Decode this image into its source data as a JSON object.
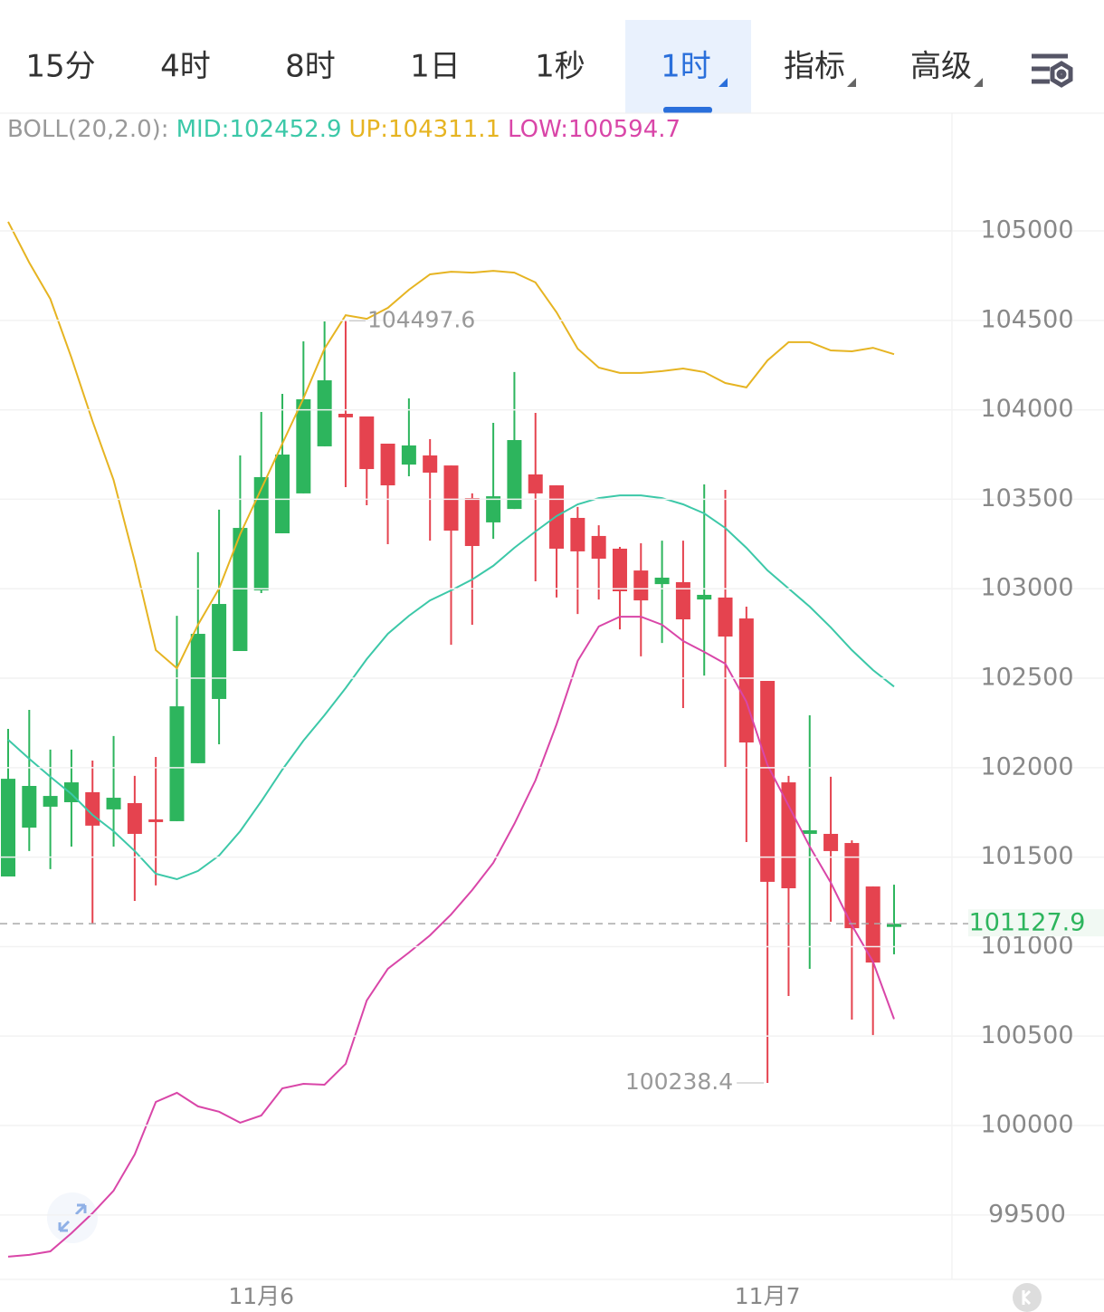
{
  "tabs": [
    "15分",
    "4时",
    "8时",
    "1日",
    "1秒",
    "1时",
    "指标",
    "高级"
  ],
  "active_tab": 5,
  "chart_data": {
    "type": "candlestick",
    "indicator": "BOLL(20,2.0):",
    "categories": [
      null,
      null,
      null,
      null,
      null,
      null,
      null,
      null,
      null,
      null,
      null,
      null,
      "11月6",
      null,
      null,
      null,
      null,
      null,
      null,
      null,
      null,
      null,
      null,
      null,
      null,
      null,
      null,
      null,
      null,
      null,
      null,
      null,
      null,
      null,
      null,
      null,
      "11月7",
      null,
      null,
      null,
      null,
      null,
      null
    ],
    "open": [
      101392,
      101665,
      101782,
      101807,
      101863,
      101767,
      101802,
      101711,
      101701,
      102025,
      102384,
      102652,
      102991,
      103310,
      103533,
      103796,
      103978,
      103963,
      103811,
      103694,
      103745,
      103689,
      103507,
      103371,
      103446,
      103639,
      103578,
      103396,
      103295,
      103224,
      103102,
      103026,
      103037,
      102940,
      102951,
      102834,
      102485,
      101918,
      101630,
      101630,
      101579,
      101336,
      101110
    ],
    "high": [
      102217,
      102323,
      102101,
      102101,
      102040,
      102177,
      101954,
      102060,
      102849,
      103204,
      103442,
      103745,
      103988,
      104089,
      104383,
      104494,
      104497.6,
      103963,
      103811,
      104064,
      103836,
      103689,
      103533,
      103927,
      104211,
      103983,
      103578,
      103457,
      103355,
      103234,
      103254,
      103269,
      103269,
      103583,
      103553,
      102900,
      102485,
      101954,
      102293,
      101949,
      101594,
      101336,
      101346
    ],
    "low": [
      101392,
      101534,
      101433,
      101559,
      101129,
      101559,
      101255,
      101342,
      101701,
      102025,
      102131,
      102652,
      102976,
      103310,
      103533,
      103796,
      103568,
      103467,
      103249,
      103629,
      103269,
      102687,
      102799,
      103279,
      103446,
      103042,
      102951,
      102859,
      102940,
      102773,
      102622,
      102697,
      102333,
      102515,
      102004,
      101584,
      100238.4,
      100724,
      100876,
      101139,
      100592,
      100506,
      100957
    ],
    "close": [
      101938,
      101898,
      101842,
      101918,
      101676,
      101832,
      101630,
      101696,
      102343,
      102748,
      102915,
      103340,
      103624,
      103750,
      104059,
      104165,
      103958,
      103669,
      103578,
      103801,
      103649,
      103325,
      103239,
      103517,
      103831,
      103533,
      103224,
      103209,
      103168,
      102986,
      102935,
      103062,
      102829,
      102966,
      102733,
      102141,
      101362,
      101326,
      101650,
      101534,
      101103,
      100911,
      101127.9
    ],
    "up_color": "#2db55d",
    "down_color": "#e5434f",
    "overlays": [
      {
        "label": "MID:102452.9",
        "color": "#3cc8a8",
        "values": [
          102156,
          102050,
          101949,
          101853,
          101736,
          101645,
          101534,
          101407,
          101377,
          101423,
          101509,
          101645,
          101812,
          101989,
          102151,
          102293,
          102445,
          102607,
          102748,
          102849,
          102935,
          102991,
          103052,
          103128,
          103229,
          103320,
          103406,
          103472,
          103507,
          103522,
          103522,
          103507,
          103472,
          103421,
          103340,
          103229,
          103103,
          103001,
          102900,
          102784,
          102657,
          102546,
          102452.9
        ]
      },
      {
        "label": "UP:104311.1",
        "color": "#e6b422",
        "values": [
          105051,
          104823,
          104620,
          104292,
          103937,
          103608,
          103153,
          102657,
          102556,
          102799,
          103001,
          103305,
          103558,
          103811,
          104064,
          104342,
          104529,
          104509,
          104570,
          104671,
          104757,
          104772,
          104767,
          104777,
          104767,
          104712,
          104545,
          104342,
          104236,
          104206,
          104206,
          104216,
          104231,
          104211,
          104150,
          104125,
          104276,
          104378,
          104378,
          104332,
          104327,
          104347,
          104311.1
        ]
      },
      {
        "label": "LOW:100594.7",
        "color": "#d946a8",
        "values": [
          99267,
          99277,
          99297,
          99398,
          99510,
          99636,
          99839,
          100132,
          100183,
          100107,
          100077,
          100016,
          100056,
          100208,
          100233,
          100228,
          100345,
          100699,
          100876,
          100967,
          101063,
          101180,
          101316,
          101468,
          101686,
          101929,
          102242,
          102597,
          102789,
          102844,
          102844,
          102799,
          102708,
          102647,
          102581,
          102369,
          102015,
          101787,
          101559,
          101357,
          101119,
          100916,
          100594.7
        ]
      }
    ],
    "annotations": [
      104497.6,
      100238.4
    ],
    "last_price": 101127.9,
    "ylim": [
      99140,
      105658
    ],
    "yticks": [
      99500,
      100000,
      100500,
      101000,
      101500,
      102000,
      102500,
      103000,
      103500,
      104000,
      104500,
      105000
    ],
    "grid": true
  }
}
